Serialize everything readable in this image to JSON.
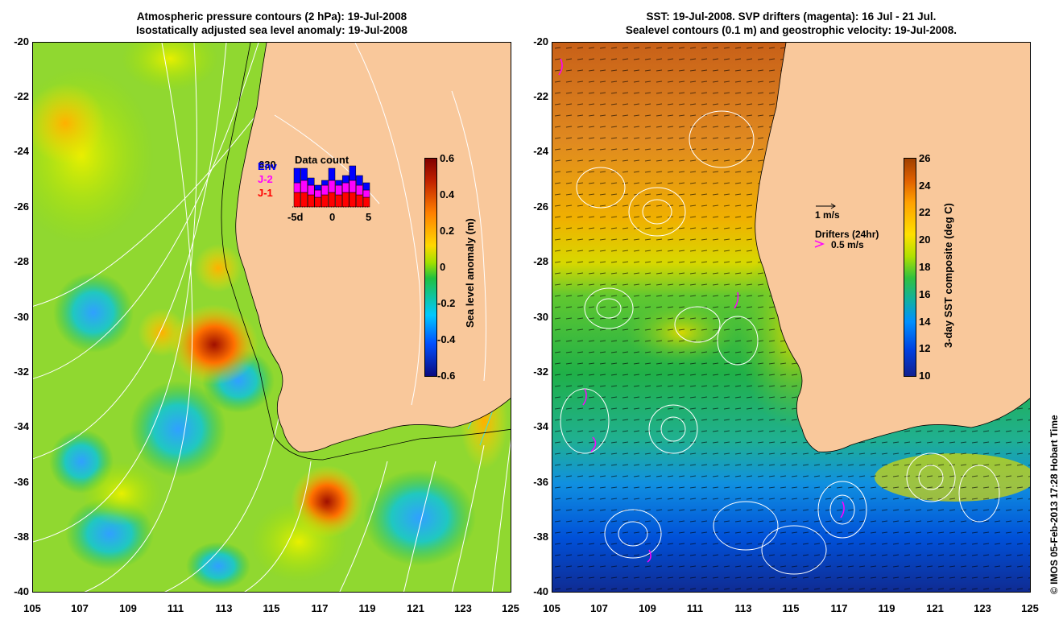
{
  "left_panel": {
    "title_line1": "Atmospheric pressure contours (2 hPa): 19-Jul-2008",
    "title_line2": "Isostatically adjusted sea level anomaly: 19-Jul-2008",
    "colorbar": {
      "label": "Sea level anomaly (m)",
      "ticks": [
        "0.6",
        "0.4",
        "0.2",
        "0",
        "-0.2",
        "-0.4",
        "-0.6"
      ]
    },
    "inset": {
      "title": "Data count",
      "legend": [
        {
          "label": "Env",
          "color": "#0000ff"
        },
        {
          "label": "J-2",
          "color": "#ff00ff"
        },
        {
          "label": "J-1",
          "color": "#ff0000"
        }
      ],
      "max_label": "630",
      "x_ticks": [
        "-5d",
        "0",
        "5"
      ],
      "bars": [
        {
          "J1": 0.3,
          "J2": 0.2,
          "Env": 0.3
        },
        {
          "J1": 0.3,
          "J2": 0.25,
          "Env": 0.25
        },
        {
          "J1": 0.25,
          "J2": 0.2,
          "Env": 0.15
        },
        {
          "J1": 0.2,
          "J2": 0.15,
          "Env": 0.1
        },
        {
          "J1": 0.25,
          "J2": 0.2,
          "Env": 0.1
        },
        {
          "J1": 0.3,
          "J2": 0.25,
          "Env": 0.25
        },
        {
          "J1": 0.25,
          "J2": 0.2,
          "Env": 0.1
        },
        {
          "J1": 0.3,
          "J2": 0.2,
          "Env": 0.15
        },
        {
          "J1": 0.3,
          "J2": 0.25,
          "Env": 0.3
        },
        {
          "J1": 0.25,
          "J2": 0.2,
          "Env": 0.2
        },
        {
          "J1": 0.2,
          "J2": 0.15,
          "Env": 0.15
        }
      ]
    },
    "y_ticks": [
      "-20",
      "-22",
      "-24",
      "-26",
      "-28",
      "-30",
      "-32",
      "-34",
      "-36",
      "-38",
      "-40"
    ],
    "x_ticks": [
      "105",
      "107",
      "109",
      "111",
      "113",
      "115",
      "117",
      "119",
      "121",
      "123",
      "125"
    ]
  },
  "right_panel": {
    "title_line1": "SST: 19-Jul-2008. SVP drifters (magenta): 16 Jul - 21 Jul.",
    "title_line2": "Sealevel contours (0.1 m) and geostrophic velocity: 19-Jul-2008.",
    "colorbar": {
      "label": "3-day SST composite (deg C)",
      "ticks": [
        "26",
        "24",
        "22",
        "20",
        "18",
        "16",
        "14",
        "12",
        "10"
      ]
    },
    "velocity_legend": "1 m/s",
    "drifter_legend_title": "Drifters (24hr)",
    "drifter_legend_value": "0.5 m/s",
    "y_ticks": [
      "-20",
      "-22",
      "-24",
      "-26",
      "-28",
      "-30",
      "-32",
      "-34",
      "-36",
      "-38",
      "-40"
    ],
    "x_ticks": [
      "105",
      "107",
      "109",
      "111",
      "113",
      "115",
      "117",
      "119",
      "121",
      "123",
      "125"
    ]
  },
  "credit": "© IMOS 05-Feb-2013 17:28 Hobart Time",
  "colors": {
    "land": "#f9c89b",
    "sla_scale": [
      "#0a0a80",
      "#0050ff",
      "#00c8ff",
      "#20c040",
      "#a0e000",
      "#ffd800",
      "#ff8000",
      "#c02000",
      "#800000"
    ],
    "sst_scale": [
      "#102090",
      "#0040e0",
      "#0090ff",
      "#10b0a0",
      "#30c040",
      "#b0e000",
      "#ffe000",
      "#ffa000",
      "#e06000",
      "#a04000"
    ]
  }
}
